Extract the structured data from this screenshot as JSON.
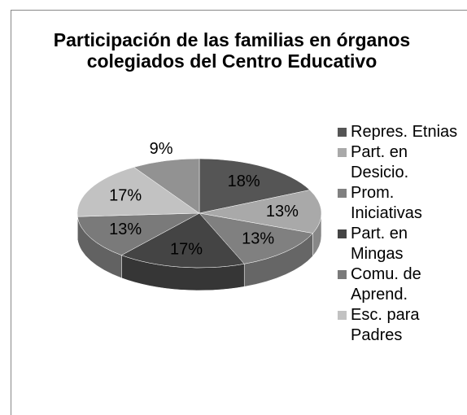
{
  "chart_data": {
    "type": "pie3d",
    "title": "Participación de las familias en órganos colegiados del Centro Educativo",
    "categories": [
      "Repres. Etnias",
      "Part. en Desicio.",
      "Prom. Iniciativas",
      "Part. en Mingas",
      "Comu. de Aprend.",
      "Esc. para Padres",
      null
    ],
    "values": [
      18,
      13,
      13,
      17,
      13,
      17,
      9
    ],
    "value_labels": [
      "18%",
      "13%",
      "13%",
      "17%",
      "13%",
      "17%",
      "9%"
    ],
    "colors": [
      "#555555",
      "#a9a9a9",
      "#808080",
      "#444444",
      "#7a7a7a",
      "#c2c2c2",
      "#929292"
    ],
    "legend": "right"
  }
}
